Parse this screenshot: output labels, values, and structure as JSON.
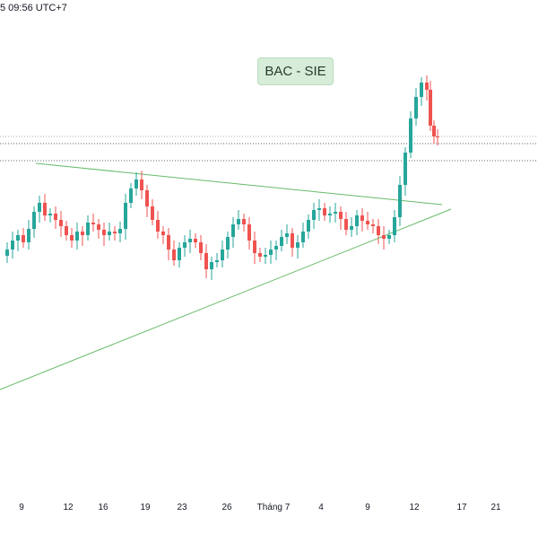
{
  "header": {
    "timestamp": "5 09:56 UTC+7"
  },
  "annotation": {
    "label": "BAC - SIE"
  },
  "colors": {
    "up": "#26a69a",
    "down": "#ef5350",
    "trendline": "#66bb6a",
    "horizontal_line": "#5d606b",
    "label_bg": "#d7ecd9"
  },
  "chart_data": {
    "type": "candlestick",
    "title": "BAC - SIE",
    "x_tick_labels": [
      "9",
      "12",
      "16",
      "19",
      "23",
      "26",
      "Tháng 7",
      "4",
      "9",
      "12",
      "17",
      "21"
    ],
    "horizontal_levels": [
      "upper dotted level near recent peak-consolidation",
      "lower dotted level near breakout"
    ],
    "trendlines": [
      "descending resistance line from mid-June high",
      "ascending support line from lower left"
    ],
    "grid": false,
    "legend": "none",
    "candles_description": "daily candles consolidating in a triangle, then a sharp breakout upward in early July followed by a small pullback"
  }
}
